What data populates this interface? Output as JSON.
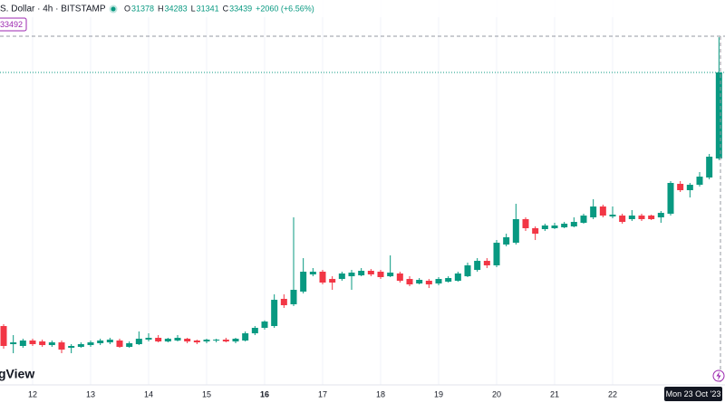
{
  "chart_data": {
    "type": "candlestick",
    "title": "S. Dollar · 4h · BITSTAMP",
    "legend": [
      {
        "label": "O",
        "value": "31378"
      },
      {
        "label": "H",
        "value": "34283"
      },
      {
        "label": "L",
        "value": "31341"
      },
      {
        "label": "C",
        "value": "33439"
      }
    ],
    "change": "+2060 (+6.56%)",
    "price_tag": "33492",
    "watermark": "gView",
    "crosshair_label": "Mon 23 Oct '23",
    "up_color": "#089981",
    "down_color": "#f23645",
    "ylim": [
      25519,
      35175
    ],
    "categories": [
      null,
      null,
      null,
      "12",
      null,
      null,
      null,
      null,
      null,
      "13",
      null,
      null,
      null,
      null,
      null,
      "14",
      null,
      null,
      null,
      null,
      null,
      "15",
      null,
      null,
      null,
      null,
      null,
      "16",
      null,
      null,
      null,
      null,
      null,
      "17",
      null,
      null,
      null,
      null,
      null,
      "18",
      null,
      null,
      null,
      null,
      null,
      "19",
      null,
      null,
      null,
      null,
      null,
      "20",
      null,
      null,
      null,
      null,
      null,
      "21",
      null,
      null,
      null,
      null,
      null,
      "22",
      null,
      null,
      null,
      null,
      null,
      null,
      null,
      null,
      null,
      null,
      null
    ],
    "open": [
      27363,
      26929,
      26886,
      27016,
      26994,
      26907,
      26972,
      26842,
      26864,
      26907,
      26951,
      26972,
      27016,
      26864,
      26929,
      27037,
      27081,
      26994,
      27016,
      27059,
      27016,
      26994,
      27016,
      27037,
      26994,
      27016,
      27189,
      27320,
      27363,
      28014,
      27884,
      28188,
      28600,
      28665,
      28491,
      28491,
      28556,
      28578,
      28687,
      28665,
      28556,
      28622,
      28491,
      28383,
      28448,
      28383,
      28426,
      28448,
      28556,
      28708,
      28925,
      28817,
      29316,
      29359,
      29924,
      29707,
      29685,
      29707,
      29728,
      29750,
      29837,
      29967,
      30227,
      29989,
      30010,
      29924,
      30010,
      30010,
      29967,
      30054,
      30770,
      30618,
      30748,
      30922,
      31378
    ],
    "high": [
      27406,
      27146,
      27059,
      27059,
      27037,
      27016,
      27016,
      26929,
      26972,
      27016,
      27059,
      27081,
      27059,
      26994,
      27233,
      27189,
      27146,
      27081,
      27146,
      27081,
      27037,
      27059,
      27059,
      27081,
      27081,
      27233,
      27363,
      27500,
      28122,
      28122,
      29967,
      28990,
      28752,
      28708,
      28556,
      28665,
      28708,
      28752,
      28730,
      28708,
      29056,
      28665,
      28556,
      28513,
      28491,
      28535,
      28556,
      28665,
      28882,
      28990,
      28990,
      29424,
      29576,
      30292,
      29967,
      29750,
      29815,
      29837,
      29858,
      29967,
      30054,
      30401,
      30271,
      30227,
      30054,
      30141,
      30054,
      30032,
      30119,
      30835,
      30835,
      30792,
      31052,
      31486,
      34283
    ],
    "low": [
      26820,
      26712,
      26842,
      26886,
      26864,
      26864,
      26712,
      26712,
      26842,
      26864,
      26907,
      26929,
      26842,
      26842,
      26907,
      26994,
      26972,
      26972,
      26994,
      26951,
      26929,
      26951,
      26972,
      26972,
      26951,
      26994,
      27146,
      27276,
      27320,
      27797,
      27840,
      28144,
      28556,
      28361,
      28231,
      28448,
      28231,
      28556,
      28556,
      28491,
      28535,
      28405,
      28318,
      28361,
      28274,
      28339,
      28405,
      28426,
      28535,
      28665,
      28752,
      28773,
      29273,
      29316,
      29641,
      29424,
      29641,
      29685,
      29707,
      29728,
      29815,
      29924,
      29967,
      29945,
      29815,
      29880,
      29880,
      29902,
      29837,
      30010,
      30575,
      30444,
      30705,
      30878,
      31341
    ],
    "close": [
      26886,
      26972,
      27016,
      26929,
      26907,
      26972,
      26799,
      26886,
      26929,
      26972,
      27016,
      27037,
      26864,
      26951,
      27059,
      27081,
      26994,
      27059,
      27081,
      26994,
      26972,
      27037,
      27037,
      26994,
      27059,
      27189,
      27320,
      27471,
      27992,
      27862,
      28231,
      28665,
      28665,
      28405,
      28405,
      28622,
      28643,
      28687,
      28600,
      28535,
      28643,
      28448,
      28361,
      28470,
      28361,
      28491,
      28513,
      28622,
      28817,
      28925,
      28817,
      29359,
      29490,
      29924,
      29707,
      29576,
      29772,
      29772,
      29815,
      29858,
      30010,
      30227,
      30010,
      30032,
      29858,
      30010,
      29924,
      29924,
      30075,
      30792,
      30618,
      30748,
      30943,
      31421,
      33439
    ]
  }
}
